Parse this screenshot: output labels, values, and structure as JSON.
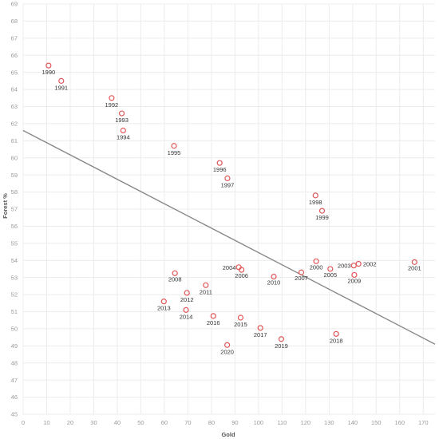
{
  "chart_data": {
    "type": "scatter",
    "title": "",
    "xlabel": "Gold",
    "ylabel": "Forest %",
    "xlim": [
      0,
      175
    ],
    "ylim": [
      45,
      69
    ],
    "xticks": [
      0,
      10,
      20,
      30,
      40,
      50,
      60,
      70,
      80,
      90,
      100,
      110,
      120,
      130,
      140,
      150,
      160,
      170
    ],
    "yticks": [
      45,
      46,
      47,
      48,
      49,
      50,
      51,
      52,
      53,
      54,
      55,
      56,
      57,
      58,
      59,
      60,
      61,
      62,
      63,
      64,
      65,
      66,
      67,
      68,
      69
    ],
    "grid": true,
    "trendline": {
      "x0": 0,
      "y0": 61.6,
      "x1": 175,
      "y1": 49.1
    },
    "points": [
      {
        "label": "1990",
        "x": 10.8,
        "y": 65.4
      },
      {
        "label": "1991",
        "x": 16.2,
        "y": 64.5
      },
      {
        "label": "1992",
        "x": 37.6,
        "y": 63.5
      },
      {
        "label": "1993",
        "x": 41.9,
        "y": 62.6
      },
      {
        "label": "1994",
        "x": 42.5,
        "y": 61.6
      },
      {
        "label": "1995",
        "x": 64.1,
        "y": 60.7
      },
      {
        "label": "1996",
        "x": 83.5,
        "y": 59.7
      },
      {
        "label": "1997",
        "x": 86.8,
        "y": 58.8
      },
      {
        "label": "1998",
        "x": 124.2,
        "y": 57.8
      },
      {
        "label": "1999",
        "x": 127.0,
        "y": 56.9
      },
      {
        "label": "2000",
        "x": 124.5,
        "y": 53.95
      },
      {
        "label": "2001",
        "x": 166.3,
        "y": 53.9
      },
      {
        "label": "2002",
        "x": 142.5,
        "y": 53.8
      },
      {
        "label": "2003",
        "x": 140.5,
        "y": 53.7
      },
      {
        "label": "2004",
        "x": 91.6,
        "y": 53.6
      },
      {
        "label": "2005",
        "x": 130.5,
        "y": 53.5
      },
      {
        "label": "2006",
        "x": 92.8,
        "y": 53.45
      },
      {
        "label": "2007",
        "x": 118.2,
        "y": 53.3
      },
      {
        "label": "2008",
        "x": 64.5,
        "y": 53.25
      },
      {
        "label": "2009",
        "x": 140.7,
        "y": 53.15
      },
      {
        "label": "2010",
        "x": 106.5,
        "y": 53.05
      },
      {
        "label": "2011",
        "x": 77.6,
        "y": 52.55
      },
      {
        "label": "2012",
        "x": 69.6,
        "y": 52.1
      },
      {
        "label": "2013",
        "x": 59.8,
        "y": 51.6
      },
      {
        "label": "2014",
        "x": 69.2,
        "y": 51.1
      },
      {
        "label": "2015",
        "x": 92.4,
        "y": 50.65
      },
      {
        "label": "2016",
        "x": 80.8,
        "y": 50.75
      },
      {
        "label": "2017",
        "x": 100.8,
        "y": 50.05
      },
      {
        "label": "2018",
        "x": 133.0,
        "y": 49.7
      },
      {
        "label": "2019",
        "x": 109.7,
        "y": 49.4
      },
      {
        "label": "2020",
        "x": 86.7,
        "y": 49.05
      }
    ],
    "colors": {
      "marker": "#e15759",
      "trendline": "#888888",
      "grid": "#ececec"
    }
  }
}
